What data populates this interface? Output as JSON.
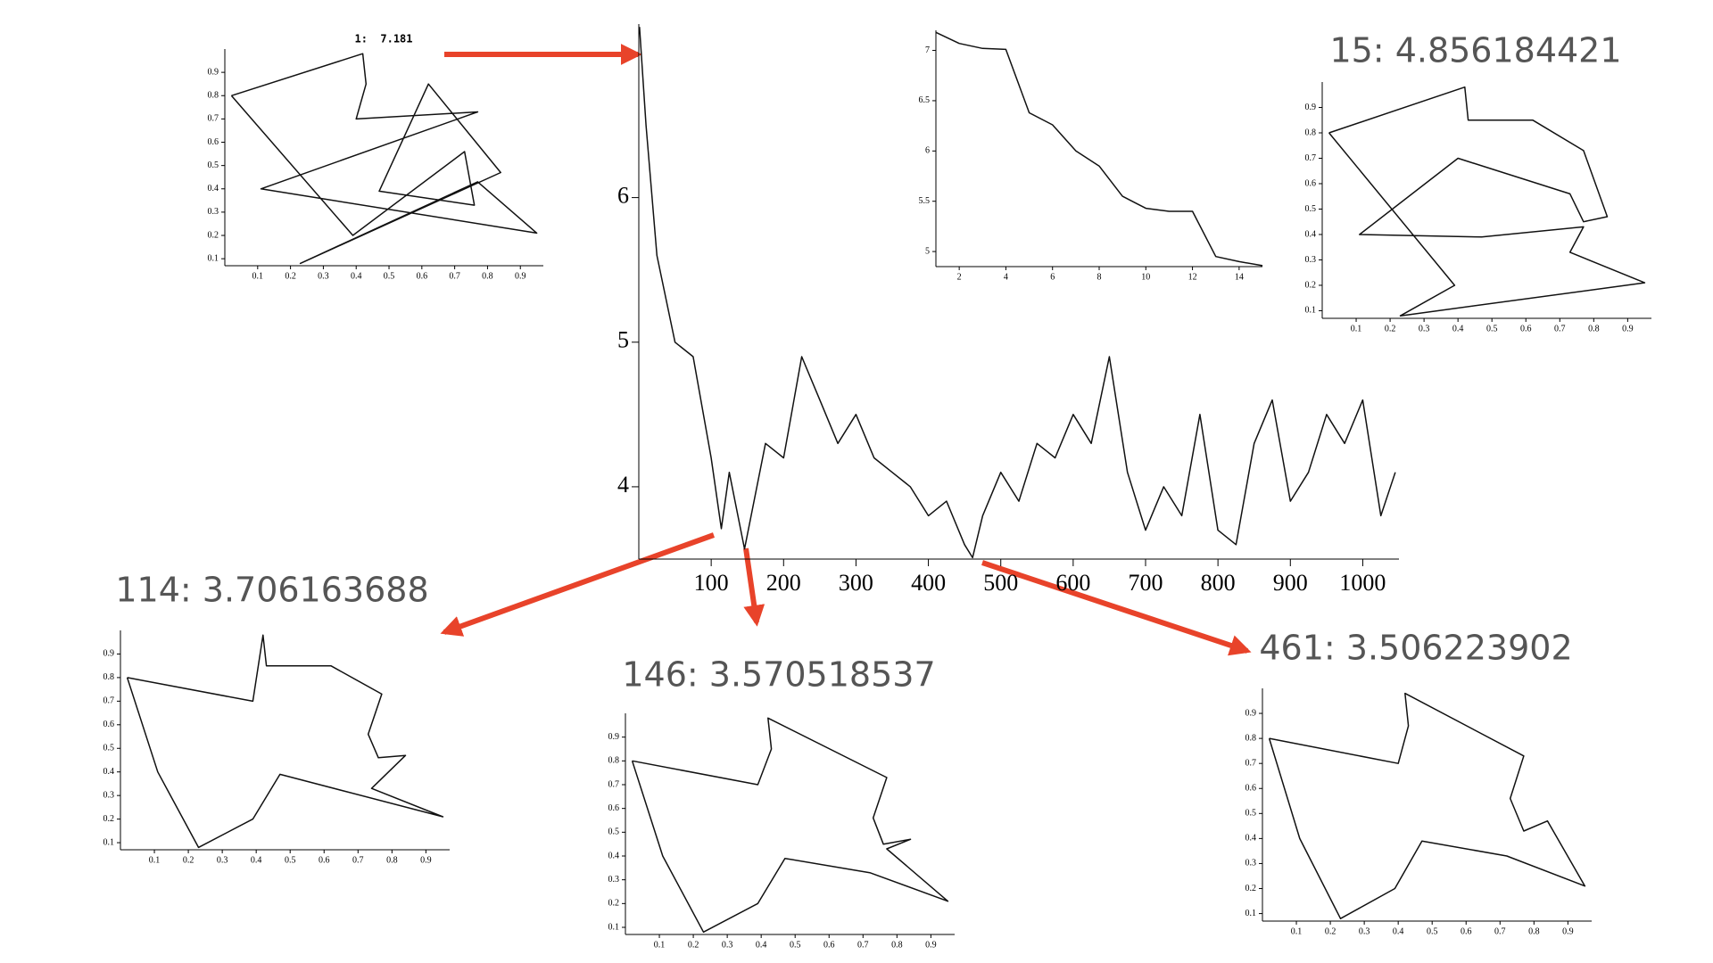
{
  "chart_data": [
    {
      "type": "line",
      "title": "1:  7.181",
      "x": [
        0.02,
        0.39,
        0.73,
        0.76,
        0.47,
        0.62,
        0.84,
        0.23,
        0.77,
        0.95,
        0.11,
        0.77,
        0.4,
        0.43,
        0.42,
        0.02
      ],
      "values": [
        0.8,
        0.2,
        0.56,
        0.33,
        0.39,
        0.85,
        0.47,
        0.08,
        0.43,
        0.21,
        0.4,
        0.73,
        0.7,
        0.85,
        0.98,
        0.8
      ],
      "xlim": [
        0,
        0.97
      ],
      "ylim": [
        0.07,
        1.0
      ],
      "xticks": [
        0.1,
        0.2,
        0.3,
        0.4,
        0.5,
        0.6,
        0.7,
        0.8,
        0.9
      ],
      "yticks": [
        0.1,
        0.2,
        0.3,
        0.4,
        0.5,
        0.6,
        0.7,
        0.8,
        0.9
      ]
    },
    {
      "type": "line",
      "x": [
        1,
        10,
        25,
        50,
        75,
        100,
        114,
        125,
        146,
        175,
        200,
        225,
        250,
        275,
        300,
        325,
        350,
        375,
        400,
        425,
        450,
        461,
        475,
        500,
        525,
        550,
        575,
        600,
        625,
        650,
        675,
        700,
        725,
        750,
        775,
        800,
        825,
        850,
        875,
        900,
        925,
        950,
        975,
        1000,
        1025,
        1045
      ],
      "values": [
        7.18,
        6.5,
        5.6,
        5.0,
        4.9,
        4.2,
        3.71,
        4.1,
        3.57,
        4.3,
        4.2,
        4.9,
        4.6,
        4.3,
        4.5,
        4.2,
        4.1,
        4.0,
        3.8,
        3.9,
        3.6,
        3.51,
        3.8,
        4.1,
        3.9,
        4.3,
        4.2,
        4.5,
        4.3,
        4.9,
        4.1,
        3.7,
        4.0,
        3.8,
        4.5,
        3.7,
        3.6,
        4.3,
        4.6,
        3.9,
        4.1,
        4.5,
        4.3,
        4.6,
        3.8,
        4.1
      ],
      "xlim": [
        0,
        1050
      ],
      "ylim": [
        3.5,
        7.2
      ],
      "xticks": [
        100,
        200,
        300,
        400,
        500,
        600,
        700,
        800,
        900,
        1000
      ],
      "yticks": [
        4,
        5,
        6
      ]
    },
    {
      "type": "line",
      "x": [
        1,
        2,
        3,
        4,
        5,
        6,
        7,
        8,
        9,
        10,
        11,
        12,
        13,
        14,
        15
      ],
      "values": [
        7.18,
        7.07,
        7.02,
        7.01,
        6.38,
        6.26,
        6.0,
        5.85,
        5.55,
        5.43,
        5.4,
        5.4,
        4.95,
        4.9,
        4.86
      ],
      "xlim": [
        1,
        15
      ],
      "ylim": [
        4.85,
        7.2
      ],
      "xticks": [
        2,
        4,
        6,
        8,
        10,
        12,
        14
      ],
      "yticks": [
        5,
        5.5,
        6,
        6.5,
        7
      ]
    },
    {
      "type": "line",
      "title": "15: 4.856184421",
      "x": [
        0.02,
        0.42,
        0.43,
        0.62,
        0.77,
        0.84,
        0.77,
        0.73,
        0.4,
        0.11,
        0.47,
        0.77,
        0.73,
        0.95,
        0.23,
        0.39,
        0.02
      ],
      "values": [
        0.8,
        0.98,
        0.85,
        0.85,
        0.73,
        0.47,
        0.45,
        0.56,
        0.7,
        0.4,
        0.39,
        0.43,
        0.33,
        0.21,
        0.08,
        0.2,
        0.8
      ],
      "xlim": [
        0,
        0.97
      ],
      "ylim": [
        0.07,
        1.0
      ],
      "xticks": [
        0.1,
        0.2,
        0.3,
        0.4,
        0.5,
        0.6,
        0.7,
        0.8,
        0.9
      ],
      "yticks": [
        0.1,
        0.2,
        0.3,
        0.4,
        0.5,
        0.6,
        0.7,
        0.8,
        0.9
      ]
    },
    {
      "type": "line",
      "title": "114: 3.706163688",
      "x": [
        0.02,
        0.39,
        0.42,
        0.43,
        0.62,
        0.77,
        0.73,
        0.76,
        0.84,
        0.74,
        0.95,
        0.47,
        0.39,
        0.23,
        0.11,
        0.02
      ],
      "values": [
        0.8,
        0.7,
        0.98,
        0.85,
        0.85,
        0.73,
        0.56,
        0.46,
        0.47,
        0.33,
        0.21,
        0.39,
        0.2,
        0.08,
        0.4,
        0.8
      ],
      "xlim": [
        0,
        0.97
      ],
      "ylim": [
        0.07,
        1.0
      ],
      "xticks": [
        0.1,
        0.2,
        0.3,
        0.4,
        0.5,
        0.6,
        0.7,
        0.8,
        0.9
      ],
      "yticks": [
        0.1,
        0.2,
        0.3,
        0.4,
        0.5,
        0.6,
        0.7,
        0.8,
        0.9
      ]
    },
    {
      "type": "line",
      "title": "146: 3.570518537",
      "x": [
        0.02,
        0.39,
        0.43,
        0.42,
        0.77,
        0.73,
        0.76,
        0.84,
        0.77,
        0.95,
        0.72,
        0.47,
        0.39,
        0.23,
        0.11,
        0.02
      ],
      "values": [
        0.8,
        0.7,
        0.85,
        0.98,
        0.73,
        0.56,
        0.45,
        0.47,
        0.43,
        0.21,
        0.33,
        0.39,
        0.2,
        0.08,
        0.4,
        0.8
      ],
      "xlim": [
        0,
        0.97
      ],
      "ylim": [
        0.07,
        1.0
      ],
      "xticks": [
        0.1,
        0.2,
        0.3,
        0.4,
        0.5,
        0.6,
        0.7,
        0.8,
        0.9
      ],
      "yticks": [
        0.1,
        0.2,
        0.3,
        0.4,
        0.5,
        0.6,
        0.7,
        0.8,
        0.9
      ]
    },
    {
      "type": "line",
      "title": "461: 3.506223902",
      "x": [
        0.02,
        0.4,
        0.43,
        0.42,
        0.77,
        0.73,
        0.77,
        0.84,
        0.95,
        0.72,
        0.47,
        0.39,
        0.23,
        0.11,
        0.02
      ],
      "values": [
        0.8,
        0.7,
        0.85,
        0.98,
        0.73,
        0.56,
        0.43,
        0.47,
        0.21,
        0.33,
        0.39,
        0.2,
        0.08,
        0.4,
        0.8
      ],
      "xlim": [
        0,
        0.97
      ],
      "ylim": [
        0.07,
        1.0
      ],
      "xticks": [
        0.1,
        0.2,
        0.3,
        0.4,
        0.5,
        0.6,
        0.7,
        0.8,
        0.9
      ],
      "yticks": [
        0.1,
        0.2,
        0.3,
        0.4,
        0.5,
        0.6,
        0.7,
        0.8,
        0.9
      ]
    }
  ]
}
